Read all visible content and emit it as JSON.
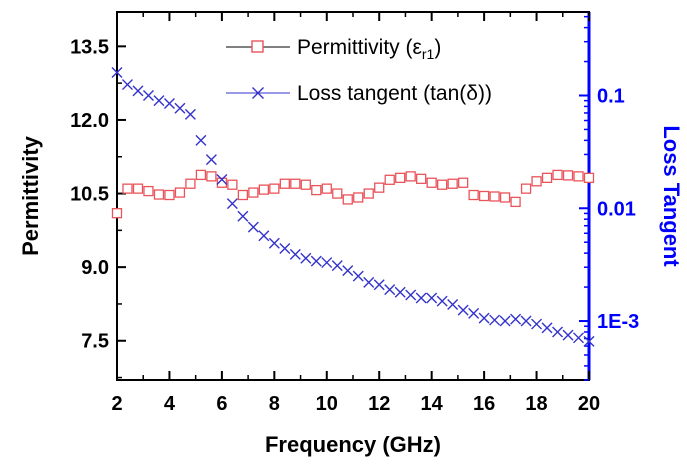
{
  "chart_data": {
    "type": "line",
    "xlabel": "Frequency (GHz)",
    "ylabel_left": "Permittivity",
    "ylabel_right": "Loss Tangent",
    "xlim": [
      2,
      20
    ],
    "ylim_left": [
      6.7,
      14.2
    ],
    "ylim_right": [
      0.0003,
      0.55
    ],
    "right_axis_scale": "log",
    "x_ticks": [
      2,
      4,
      6,
      8,
      10,
      12,
      14,
      16,
      18,
      20
    ],
    "x_tick_labels": [
      "2",
      "4",
      "6",
      "8",
      "10",
      "12",
      "14",
      "16",
      "18",
      "20"
    ],
    "y_left_ticks": [
      7.5,
      9.0,
      10.5,
      12.0,
      13.5
    ],
    "y_left_tick_labels": [
      "7.5",
      "9.0",
      "10.5",
      "12.0",
      "13.5"
    ],
    "y_right_ticks": [
      0.001,
      0.01,
      0.1
    ],
    "y_right_tick_labels": [
      "1E-3",
      "0.01",
      "0.1"
    ],
    "grid": false,
    "legend_position": "top-right",
    "colors": {
      "permittivity": "#e8545a",
      "loss_tangent": "#3333cc",
      "right_axis": "#0000ff",
      "axis": "#000000"
    },
    "series": [
      {
        "name": "Permittivity (εr1)",
        "legend_main": "Permittivity (ε",
        "legend_sub": "r1",
        "legend_close": ")",
        "axis": "left",
        "marker": "open-square",
        "x": [
          2.0,
          2.4,
          2.8,
          3.2,
          3.6,
          4.0,
          4.4,
          4.8,
          5.2,
          5.6,
          6.0,
          6.4,
          6.8,
          7.2,
          7.6,
          8.0,
          8.4,
          8.8,
          9.2,
          9.6,
          10.0,
          10.4,
          10.8,
          11.2,
          11.6,
          12.0,
          12.4,
          12.8,
          13.2,
          13.6,
          14.0,
          14.4,
          14.8,
          15.2,
          15.6,
          16.0,
          16.4,
          16.8,
          17.2,
          17.6,
          18.0,
          18.4,
          18.8,
          19.2,
          19.6,
          20.0
        ],
        "y": [
          10.1,
          10.6,
          10.6,
          10.55,
          10.48,
          10.47,
          10.52,
          10.7,
          10.88,
          10.85,
          10.72,
          10.68,
          10.47,
          10.52,
          10.58,
          10.6,
          10.7,
          10.7,
          10.68,
          10.57,
          10.6,
          10.5,
          10.38,
          10.42,
          10.5,
          10.62,
          10.78,
          10.82,
          10.85,
          10.8,
          10.72,
          10.68,
          10.7,
          10.72,
          10.47,
          10.45,
          10.44,
          10.42,
          10.33,
          10.6,
          10.75,
          10.82,
          10.88,
          10.87,
          10.85,
          10.82
        ]
      },
      {
        "name": "Loss tangent (tan(δ))",
        "legend_main": "Loss tangent (tan(δ))",
        "axis": "right",
        "marker": "x",
        "x": [
          2.0,
          2.4,
          2.8,
          3.2,
          3.6,
          4.0,
          4.4,
          4.8,
          5.2,
          5.6,
          6.0,
          6.4,
          6.8,
          7.2,
          7.6,
          8.0,
          8.4,
          8.8,
          9.2,
          9.6,
          10.0,
          10.4,
          10.8,
          11.2,
          11.6,
          12.0,
          12.4,
          12.8,
          13.2,
          13.6,
          14.0,
          14.4,
          14.8,
          15.2,
          15.6,
          16.0,
          16.4,
          16.8,
          17.2,
          17.6,
          18.0,
          18.4,
          18.8,
          19.2,
          19.6,
          20.0
        ],
        "y": [
          0.16,
          0.125,
          0.11,
          0.1,
          0.09,
          0.085,
          0.077,
          0.068,
          0.04,
          0.027,
          0.018,
          0.011,
          0.0085,
          0.0068,
          0.0057,
          0.0049,
          0.0044,
          0.0039,
          0.0036,
          0.0034,
          0.0033,
          0.0031,
          0.0028,
          0.0025,
          0.0022,
          0.0021,
          0.0019,
          0.0018,
          0.0017,
          0.0016,
          0.0016,
          0.0015,
          0.0014,
          0.00125,
          0.00117,
          0.00106,
          0.00102,
          0.001,
          0.00104,
          0.001,
          0.00094,
          0.00087,
          0.0008,
          0.00075,
          0.00071,
          0.00066
        ]
      }
    ]
  }
}
